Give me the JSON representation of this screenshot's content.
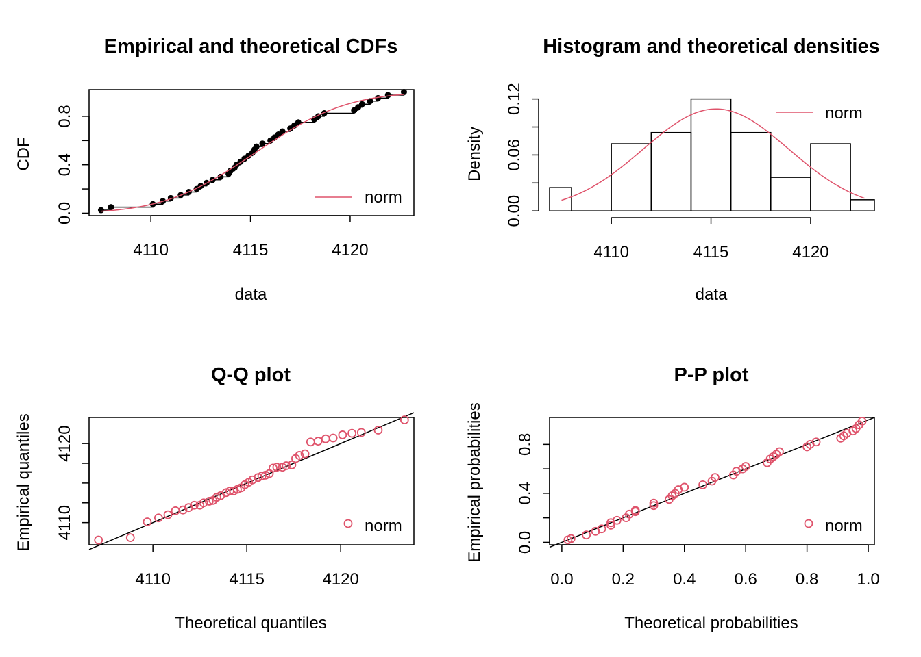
{
  "chart_data": [
    {
      "type": "line",
      "title": "Empirical and theoretical CDFs",
      "xlabel": "data",
      "ylabel": "CDF",
      "xlim": [
        4106.9,
        4123.2
      ],
      "ylim": [
        -0.02,
        1.02
      ],
      "x_ticks": [
        4110,
        4115,
        4120
      ],
      "y_ticks": [
        0.0,
        0.4,
        0.8
      ],
      "y_tick_labels": [
        "0.0",
        "0.4",
        "0.8"
      ],
      "legend": [
        "norm"
      ],
      "legend_position": "bottom-right",
      "series": [
        {
          "name": "norm",
          "color": "#DF536B",
          "kind": "theoretical-cdf",
          "mean": 4115.25,
          "sd": 3.6
        },
        {
          "kind": "empirical-cdf",
          "color": "#000000",
          "x": [
            4107.5,
            4108.0,
            4110.1,
            4110.6,
            4111.0,
            4111.5,
            4111.9,
            4112.3,
            4112.5,
            4112.8,
            4113.1,
            4113.5,
            4113.9,
            4114.0,
            4114.2,
            4114.3,
            4114.5,
            4114.7,
            4114.9,
            4115.1,
            4115.2,
            4115.3,
            4115.6,
            4116.0,
            4116.2,
            4116.4,
            4116.6,
            4117.0,
            4117.2,
            4117.4,
            4118.2,
            4118.4,
            4118.7,
            4120.2,
            4120.4,
            4120.6,
            4121.0,
            4121.4,
            4121.9,
            4122.7
          ],
          "y": [
            0.025,
            0.05,
            0.075,
            0.1,
            0.125,
            0.15,
            0.175,
            0.2,
            0.225,
            0.25,
            0.275,
            0.3,
            0.325,
            0.35,
            0.375,
            0.4,
            0.425,
            0.45,
            0.475,
            0.5,
            0.525,
            0.55,
            0.575,
            0.6,
            0.625,
            0.65,
            0.675,
            0.7,
            0.725,
            0.75,
            0.775,
            0.8,
            0.825,
            0.85,
            0.875,
            0.9,
            0.925,
            0.95,
            0.975,
            1.0
          ]
        }
      ]
    },
    {
      "type": "bar",
      "title": "Histogram and theoretical densities",
      "xlabel": "data",
      "ylabel": "Density",
      "xlim": [
        4106.9,
        4123.2
      ],
      "ylim": [
        -0.005,
        0.13
      ],
      "x_ticks": [
        4110,
        4115,
        4120
      ],
      "y_ticks": [
        0.0,
        0.06,
        0.12
      ],
      "y_tick_labels": [
        "0.00",
        "0.06",
        "0.12"
      ],
      "bins": [
        {
          "from": 4106,
          "to": 4108,
          "value": 0.025
        },
        {
          "from": 4108,
          "to": 4110,
          "value": 0.0
        },
        {
          "from": 4110,
          "to": 4112,
          "value": 0.072
        },
        {
          "from": 4112,
          "to": 4114,
          "value": 0.084
        },
        {
          "from": 4114,
          "to": 4116,
          "value": 0.12
        },
        {
          "from": 4116,
          "to": 4118,
          "value": 0.084
        },
        {
          "from": 4118,
          "to": 4120,
          "value": 0.036
        },
        {
          "from": 4120,
          "to": 4122,
          "value": 0.072
        },
        {
          "from": 4122,
          "to": 4124,
          "value": 0.012
        }
      ],
      "legend": [
        "norm"
      ],
      "legend_position": "top-right",
      "series": [
        {
          "name": "norm",
          "color": "#DF536B",
          "kind": "density",
          "mean": 4115.25,
          "sd": 3.65,
          "x_from": 4107.5,
          "x_to": 4122.7
        }
      ]
    },
    {
      "type": "scatter",
      "title": "Q-Q plot",
      "xlabel": "Theoretical quantiles",
      "ylabel": "Empirical quantiles",
      "xlim": [
        4106.6,
        4123.9
      ],
      "ylim": [
        4107.2,
        4123.3
      ],
      "x_ticks": [
        4110,
        4115,
        4120
      ],
      "y_ticks": [
        4110,
        4115,
        4120
      ],
      "y_tick_labels": [
        "4110",
        "",
        "4120"
      ],
      "legend": [
        "norm"
      ],
      "legend_position": "bottom-right",
      "points": {
        "name": "norm",
        "color": "#DF536B",
        "x": [
          4107.1,
          4108.8,
          4109.7,
          4110.3,
          4110.8,
          4111.2,
          4111.6,
          4111.9,
          4112.2,
          4112.5,
          4112.7,
          4113.0,
          4113.2,
          4113.4,
          4113.6,
          4113.9,
          4114.1,
          4114.3,
          4114.5,
          4114.7,
          4114.9,
          4115.1,
          4115.3,
          4115.6,
          4115.8,
          4116.0,
          4116.2,
          4116.4,
          4116.6,
          4116.9,
          4117.1,
          4117.4,
          4117.6,
          4117.8,
          4118.1,
          4118.4,
          4118.8,
          4119.2,
          4119.6,
          4120.1,
          4120.6,
          4121.1,
          4122.0,
          4123.4
        ],
        "y": [
          4107.8,
          4108.1,
          4110.1,
          4110.6,
          4111.0,
          4111.5,
          4111.6,
          4111.9,
          4112.2,
          4112.2,
          4112.5,
          4112.7,
          4112.8,
          4113.2,
          4113.4,
          4113.8,
          4114.0,
          4114.0,
          4114.2,
          4114.4,
          4114.8,
          4115.1,
          4115.4,
          4115.7,
          4115.9,
          4116.0,
          4116.2,
          4116.9,
          4117.0,
          4117.0,
          4117.2,
          4117.3,
          4118.1,
          4118.5,
          4118.7,
          4120.2,
          4120.3,
          4120.6,
          4120.7,
          4121.1,
          4121.3,
          4121.4,
          4121.7,
          4123.0
        ]
      },
      "reference_line": {
        "from": [
          4106.6,
          4106.6
        ],
        "to": [
          4123.9,
          4123.9
        ],
        "color": "#000000"
      }
    },
    {
      "type": "scatter",
      "title": "P-P plot",
      "xlabel": "Theoretical probabilities",
      "ylabel": "Empirical probabilities",
      "xlim": [
        -0.04,
        1.02
      ],
      "ylim": [
        -0.02,
        1.02
      ],
      "x_ticks": [
        0.0,
        0.2,
        0.4,
        0.6,
        0.8,
        1.0
      ],
      "x_tick_labels": [
        "0.0",
        "0.2",
        "0.4",
        "0.6",
        "0.8",
        "1.0"
      ],
      "y_ticks": [
        0.0,
        0.4,
        0.8
      ],
      "y_tick_labels": [
        "0.0",
        "0.4",
        "0.8"
      ],
      "legend": [
        "norm"
      ],
      "legend_position": "bottom-right",
      "points": {
        "name": "norm",
        "color": "#DF536B",
        "x": [
          0.02,
          0.03,
          0.08,
          0.11,
          0.13,
          0.16,
          0.16,
          0.18,
          0.21,
          0.22,
          0.24,
          0.24,
          0.3,
          0.3,
          0.35,
          0.36,
          0.37,
          0.38,
          0.4,
          0.46,
          0.49,
          0.5,
          0.56,
          0.57,
          0.59,
          0.6,
          0.67,
          0.68,
          0.69,
          0.7,
          0.71,
          0.8,
          0.81,
          0.83,
          0.91,
          0.92,
          0.93,
          0.95,
          0.96,
          0.97,
          0.98
        ],
        "y": [
          0.02,
          0.03,
          0.06,
          0.09,
          0.11,
          0.14,
          0.16,
          0.18,
          0.2,
          0.23,
          0.25,
          0.26,
          0.3,
          0.32,
          0.35,
          0.38,
          0.4,
          0.43,
          0.45,
          0.47,
          0.5,
          0.53,
          0.55,
          0.58,
          0.6,
          0.62,
          0.65,
          0.68,
          0.7,
          0.72,
          0.74,
          0.78,
          0.8,
          0.82,
          0.85,
          0.87,
          0.89,
          0.91,
          0.93,
          0.96,
          0.99
        ]
      },
      "reference_line": {
        "from": [
          -0.04,
          -0.04
        ],
        "to": [
          1.02,
          1.02
        ],
        "color": "#000000"
      }
    }
  ]
}
